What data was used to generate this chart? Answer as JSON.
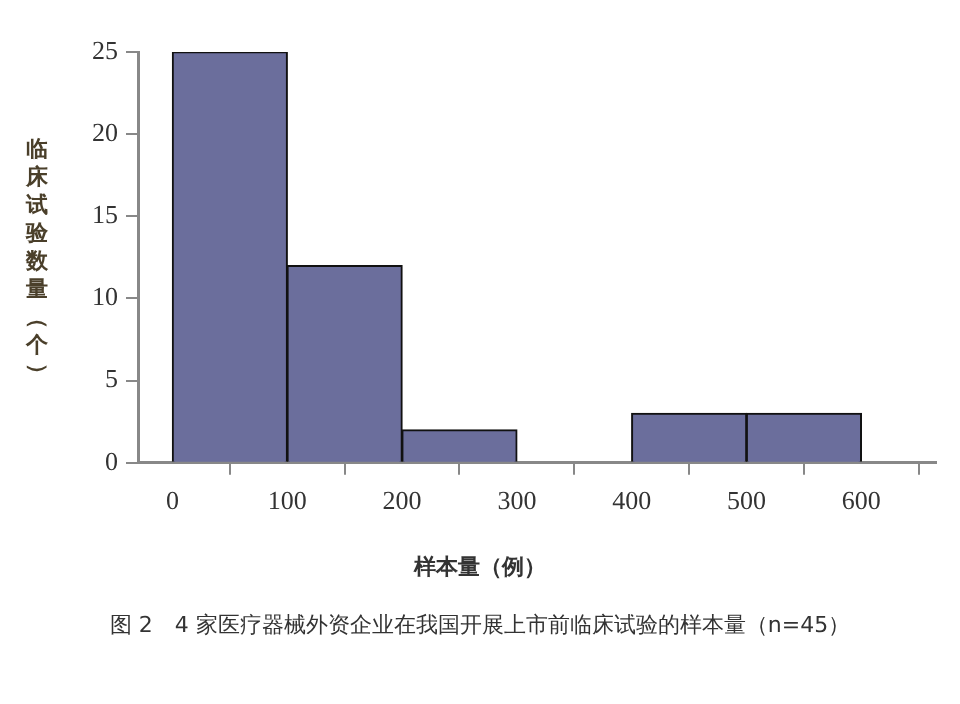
{
  "chart_data": {
    "type": "histogram",
    "xlabel": "样本量（例）",
    "ylabel": "临床试验数量（个）",
    "bins": [
      0,
      100,
      200,
      300,
      400,
      500,
      600
    ],
    "values": [
      25,
      12,
      2,
      0,
      3,
      3
    ],
    "color": "#6b6e9c",
    "xlim": [
      -30,
      665
    ],
    "xticks": [
      0,
      100,
      200,
      300,
      400,
      500,
      600
    ],
    "ylim": [
      0,
      25
    ],
    "yticks": [
      0,
      5,
      10,
      15,
      20,
      25
    ],
    "grid": false,
    "legend": false,
    "annotations": [
      "图 2　4 家医疗器械外资企业在我国开展上市前临床试验的样本量（n=45）"
    ]
  }
}
